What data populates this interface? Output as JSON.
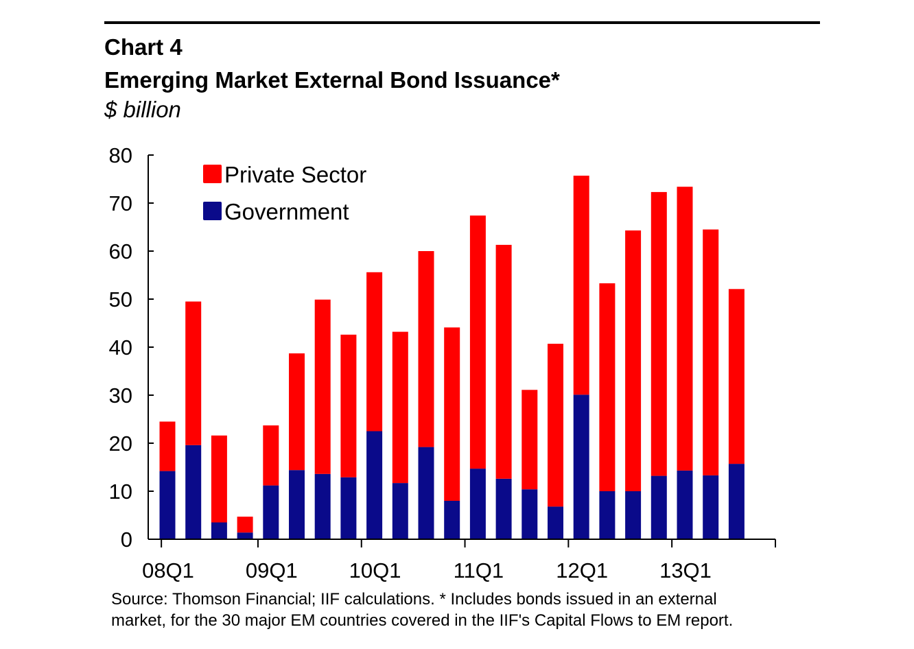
{
  "header": {
    "chart_number": "Chart 4",
    "title": "Emerging Market External Bond Issuance*",
    "unit": "$ billion"
  },
  "chart_data": {
    "type": "bar",
    "stacked": true,
    "title": "Emerging Market External Bond Issuance*",
    "ylabel": "$ billion",
    "ylim": [
      0,
      80
    ],
    "yticks": [
      0,
      10,
      20,
      30,
      40,
      50,
      60,
      70,
      80
    ],
    "categories": [
      "08Q1",
      "08Q2",
      "08Q3",
      "08Q4",
      "09Q1",
      "09Q2",
      "09Q3",
      "09Q4",
      "10Q1",
      "10Q2",
      "10Q3",
      "10Q4",
      "11Q1",
      "11Q2",
      "11Q3",
      "11Q4",
      "12Q1",
      "12Q2",
      "12Q3",
      "12Q4",
      "13Q1",
      "13Q2",
      "13Q3"
    ],
    "x_tick_labels": [
      "08Q1",
      "09Q1",
      "10Q1",
      "11Q1",
      "12Q1",
      "13Q1"
    ],
    "legend_position": "top-left",
    "grid": false,
    "series": [
      {
        "name": "Government",
        "color": "#0a0a8a",
        "values": [
          14.2,
          19.6,
          3.5,
          1.4,
          11.2,
          14.4,
          13.6,
          12.9,
          22.5,
          11.7,
          19.2,
          8.0,
          14.7,
          12.6,
          10.4,
          6.8,
          30.1,
          10.0,
          10.0,
          13.2,
          14.3,
          13.3,
          15.7
        ]
      },
      {
        "name": "Private Sector",
        "color": "#ff0000",
        "values": [
          10.3,
          29.9,
          18.1,
          3.3,
          12.5,
          24.3,
          36.3,
          29.7,
          33.1,
          31.5,
          40.8,
          36.1,
          52.7,
          48.7,
          20.7,
          33.9,
          45.6,
          43.3,
          54.3,
          59.1,
          59.1,
          51.2,
          36.4
        ]
      }
    ]
  },
  "footer": {
    "source_line1": "Source: Thomson Financial; IIF calculations. * Includes bonds issued in an external",
    "source_line2": "market, for the 30 major EM countries covered in the IIF's Capital Flows to EM report."
  }
}
